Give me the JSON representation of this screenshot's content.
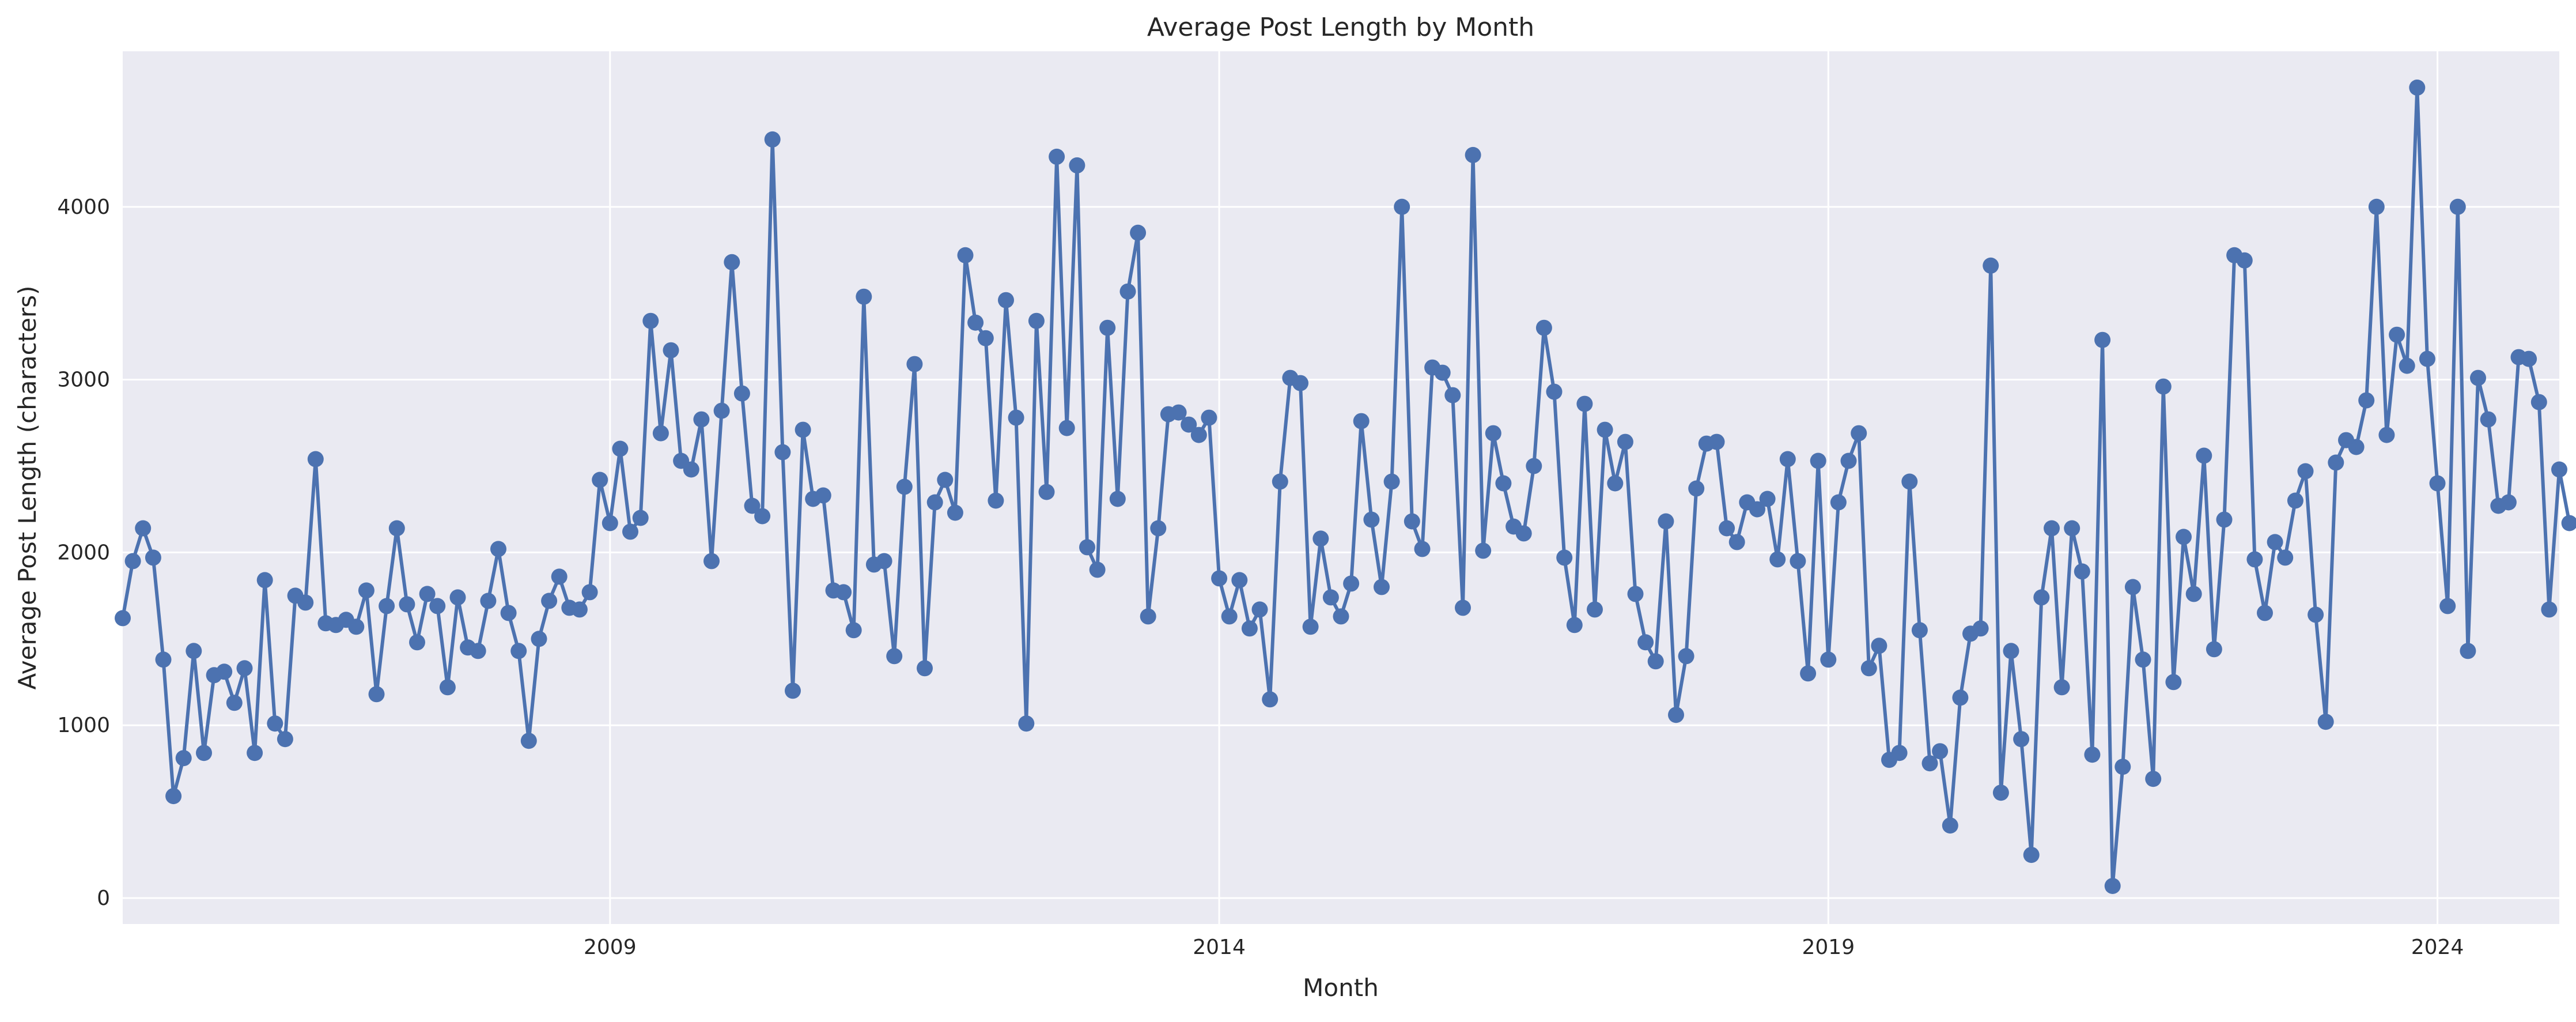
{
  "chart_data": {
    "type": "line",
    "title": "Average Post Length by Month",
    "xlabel": "Month",
    "ylabel": "Average Post Length (characters)",
    "x_start": "2005-01",
    "x_end": "2025-01",
    "xlim": [
      "2005-01",
      "2025-01"
    ],
    "ylim": [
      -150,
      4900
    ],
    "x_ticks": [
      "2009",
      "2014",
      "2019",
      "2024"
    ],
    "x_tick_dates": [
      "2009-01",
      "2014-01",
      "2019-01",
      "2024-01"
    ],
    "y_ticks": [
      "0",
      "1000",
      "2000",
      "3000",
      "4000"
    ],
    "y_tick_values": [
      0,
      1000,
      2000,
      3000,
      4000
    ],
    "grid": true,
    "series": [
      {
        "color": "#4c72b0",
        "marker": "circle",
        "values": [
          1620,
          1950,
          2140,
          1970,
          1380,
          590,
          810,
          1430,
          840,
          1290,
          1310,
          1130,
          1330,
          840,
          1840,
          1010,
          920,
          1750,
          1710,
          2540,
          1590,
          1580,
          1610,
          1570,
          1780,
          1180,
          1690,
          2140,
          1700,
          1480,
          1760,
          1690,
          1220,
          1740,
          1450,
          1430,
          1720,
          2020,
          1650,
          1430,
          910,
          1500,
          1720,
          1860,
          1680,
          1670,
          1770,
          2420,
          2170,
          2600,
          2120,
          2200,
          3340,
          2690,
          3170,
          2530,
          2480,
          2770,
          1950,
          2820,
          3680,
          2920,
          2270,
          2210,
          4390,
          2580,
          1200,
          2710,
          2310,
          2330,
          1780,
          1770,
          1550,
          3480,
          1930,
          1950,
          1400,
          2380,
          3090,
          1330,
          2290,
          2420,
          2230,
          3720,
          3330,
          3240,
          2300,
          3460,
          2780,
          1010,
          3340,
          2350,
          4290,
          2720,
          4240,
          2030,
          1900,
          3300,
          2310,
          3510,
          3850,
          1630,
          2140,
          2800,
          2810,
          2740,
          2680,
          2780,
          1850,
          1630,
          1840,
          1560,
          1670,
          1150,
          2410,
          3010,
          2980,
          1570,
          2080,
          1740,
          1630,
          1820,
          2760,
          2190,
          1800,
          2410,
          4000,
          2180,
          2020,
          3070,
          3040,
          2910,
          1680,
          4300,
          2010,
          2690,
          2400,
          2150,
          2110,
          2500,
          3300,
          2930,
          1970,
          1580,
          2860,
          1670,
          2710,
          2400,
          2640,
          1760,
          1480,
          1370,
          2180,
          1060,
          1400,
          2370,
          2630,
          2640,
          2140,
          2060,
          2290,
          2250,
          2310,
          1960,
          2540,
          1950,
          1300,
          2530,
          1380,
          2290,
          2530,
          2690,
          1330,
          1460,
          800,
          840,
          2410,
          1550,
          780,
          850,
          420,
          1160,
          1530,
          1560,
          3660,
          610,
          1430,
          920,
          250,
          1740,
          2140,
          1220,
          2140,
          1890,
          830,
          3230,
          70,
          760,
          1800,
          1380,
          690,
          2960,
          1250,
          2090,
          1760,
          2560,
          1440,
          2190,
          3720,
          3690,
          1960,
          1650,
          2060,
          1970,
          2300,
          2470,
          1640,
          1020,
          2520,
          2650,
          2610,
          2880,
          4000,
          2680,
          3260,
          3080,
          4690,
          3120,
          2400,
          1690,
          4000,
          1430,
          3010,
          2770,
          2270,
          2290,
          3130,
          3120,
          2870,
          1670,
          2480,
          2170
        ]
      }
    ]
  }
}
